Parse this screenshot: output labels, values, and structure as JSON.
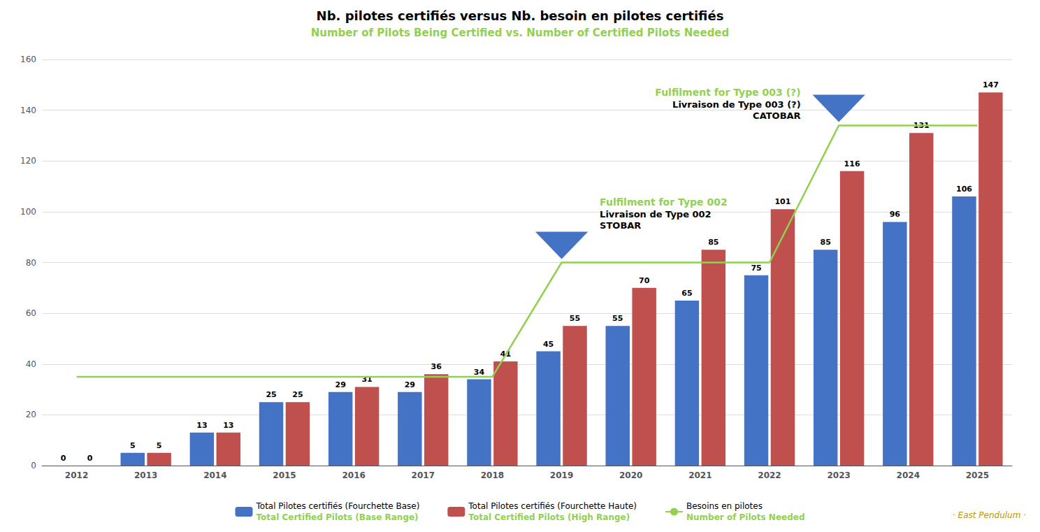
{
  "chart_data": {
    "type": "bar",
    "title": "Nb. pilotes certifiés versus Nb. besoin en pilotes certifiés",
    "subtitle": "Number of Pilots Being Certified vs. Number of Certified Pilots Needed",
    "categories": [
      2012,
      2013,
      2014,
      2015,
      2016,
      2017,
      2018,
      2019,
      2020,
      2021,
      2022,
      2023,
      2024,
      2025
    ],
    "series": [
      {
        "name": "Total Pilotes certifiés (Fourchette Base)",
        "name_en": "Total Certified Pilots (Base Range)",
        "type": "bar",
        "color": "#4472C4",
        "data_labels": true,
        "values": [
          0,
          5,
          13,
          25,
          29,
          29,
          34,
          45,
          55,
          65,
          75,
          85,
          96,
          106
        ]
      },
      {
        "name": "Total Pilotes certifiés (Fourchette Haute)",
        "name_en": "Total Certified Pilots (High Range)",
        "type": "bar",
        "color": "#C0504D",
        "data_labels": true,
        "values": [
          0,
          5,
          13,
          25,
          31,
          36,
          41,
          55,
          70,
          85,
          101,
          116,
          131,
          147
        ]
      },
      {
        "name": "Besoins en pilotes",
        "name_en": "Number of Pilots Needed",
        "type": "line",
        "color": "#92D050",
        "data_labels": false,
        "x": [
          2012,
          2013,
          2014,
          2015,
          2016,
          2017,
          2018,
          2019,
          2022,
          2023,
          2024,
          2025
        ],
        "values": [
          35,
          35,
          35,
          35,
          35,
          35,
          35,
          80,
          80,
          134,
          134,
          134
        ]
      }
    ],
    "ylim": [
      0,
      160
    ],
    "yticks": [
      0,
      20,
      40,
      60,
      80,
      100,
      120,
      140,
      160
    ],
    "grid": true,
    "legend": "bottom",
    "annotations": [
      {
        "x": 2019,
        "y": 80,
        "texts": [
          "Fulfilment for Type 002",
          "Livraison de Type 002",
          "STOBAR"
        ]
      },
      {
        "x": 2023,
        "y": 134,
        "texts": [
          "Fulfilment for Type 003 (?)",
          "Livraison de Type 003 (?)",
          "CATOBAR"
        ]
      }
    ],
    "watermark": "· East Pendulum ·"
  }
}
